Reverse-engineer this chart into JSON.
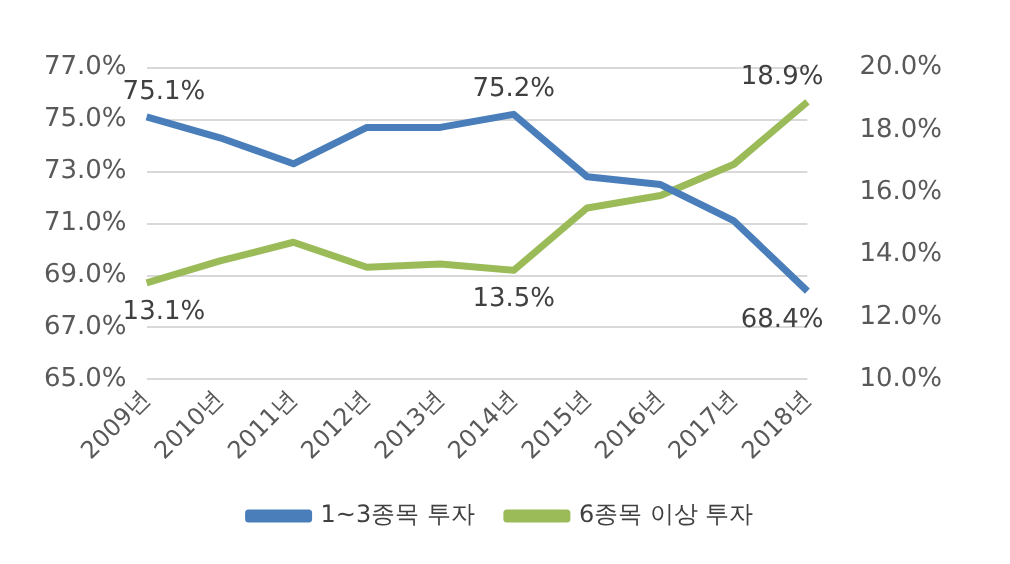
{
  "chart_data": {
    "type": "line",
    "categories": [
      "2009년",
      "2010년",
      "2011년",
      "2012년",
      "2013년",
      "2014년",
      "2015년",
      "2016년",
      "2017년",
      "2018년"
    ],
    "series": [
      {
        "name": "1~3종목 투자",
        "color": "#4a7ebb",
        "values": [
          75.1,
          74.3,
          73.3,
          74.7,
          74.7,
          75.2,
          72.8,
          72.5,
          71.1,
          68.4
        ],
        "value_labels": [
          "75.1%",
          null,
          null,
          null,
          null,
          "75.2%",
          null,
          null,
          null,
          "68.4%"
        ]
      },
      {
        "name": "6종목 이상 투자",
        "color": "#9bbb59",
        "axis": "y2",
        "values": [
          13.1,
          13.8,
          14.4,
          13.6,
          13.7,
          13.5,
          15.5,
          15.9,
          16.9,
          18.9
        ],
        "value_labels": [
          "13.1%",
          null,
          null,
          null,
          null,
          "13.5%",
          null,
          null,
          null,
          "18.9%"
        ]
      }
    ],
    "ylim": [
      65,
      77
    ],
    "yticks": [
      {
        "value": 65,
        "label": "65.0%"
      },
      {
        "value": 67,
        "label": "67.0%"
      },
      {
        "value": 69,
        "label": "69.0%"
      },
      {
        "value": 71,
        "label": "71.0%"
      },
      {
        "value": 73,
        "label": "73.0%"
      },
      {
        "value": 75,
        "label": "75.0%"
      },
      {
        "value": 77,
        "label": "77.0%"
      }
    ],
    "y2lim": [
      10,
      20
    ],
    "y2ticks": [
      {
        "value": 10,
        "label": "10.0%"
      },
      {
        "value": 12,
        "label": "12.0%"
      },
      {
        "value": 14,
        "label": "14.0%"
      },
      {
        "value": 16,
        "label": "16.0%"
      },
      {
        "value": 18,
        "label": "18.0%"
      },
      {
        "value": 20,
        "label": "20.0%"
      }
    ],
    "grid": "y",
    "legend": "bottom",
    "marker": "none",
    "line_style": "solid"
  }
}
